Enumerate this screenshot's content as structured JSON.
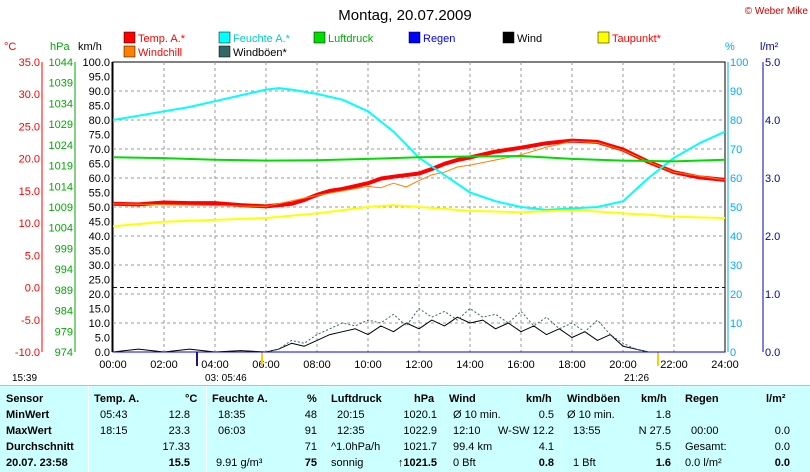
{
  "chart_data": {
    "type": "line",
    "title": "Montag, 20.07.2009",
    "copyright": "© Weber Mike",
    "x_ticks": [
      "00:00",
      "02:00",
      "04:00",
      "06:00",
      "08:00",
      "10:00",
      "12:00",
      "14:00",
      "16:00",
      "18:00",
      "20:00",
      "22:00",
      "24:00"
    ],
    "xlim": [
      0,
      24
    ],
    "axes": {
      "celsius": {
        "label": "°C",
        "ticks": [
          "35.0",
          "30.0",
          "25.0",
          "20.0",
          "15.0",
          "10.0",
          "5.0",
          "0.0",
          "-5.0",
          "-10.0"
        ],
        "range": [
          -10,
          35
        ],
        "color": "#ff0000"
      },
      "hpa": {
        "label": "hPa",
        "ticks": [
          "1044",
          "1039",
          "1034",
          "1029",
          "1024",
          "1019",
          "1014",
          "1009",
          "1004",
          "999",
          "994",
          "989",
          "984",
          "979",
          "974"
        ],
        "range": [
          974,
          1044
        ],
        "color": "#00aa00"
      },
      "kmh": {
        "label": "km/h",
        "ticks": [
          "100.0",
          "95.0",
          "90.0",
          "85.0",
          "80.0",
          "75.0",
          "70.0",
          "65.0",
          "60.0",
          "55.0",
          "50.0",
          "45.0",
          "40.0",
          "35.0",
          "30.0",
          "25.0",
          "20.0",
          "15.0",
          "10.0",
          "5.0",
          "0.0"
        ],
        "range": [
          0,
          100
        ],
        "color": "#000000"
      },
      "percent": {
        "label": "%",
        "ticks": [
          "100",
          "90",
          "80",
          "70",
          "60",
          "50",
          "40",
          "30",
          "20",
          "10",
          "0"
        ],
        "range": [
          0,
          100
        ],
        "color": "#00aaff"
      },
      "lm2": {
        "label": "l/m²",
        "ticks": [
          "5.0",
          "4.0",
          "3.0",
          "2.0",
          "1.0",
          "0.0"
        ],
        "range": [
          0,
          5
        ],
        "color": "#0000aa"
      }
    },
    "legend": [
      {
        "name": "Temp. A.*",
        "color": "#ff0000",
        "text_color": "#ff0000"
      },
      {
        "name": "Feuchte A.*",
        "color": "#00ffff",
        "text_color": "#00cccc"
      },
      {
        "name": "Luftdruck",
        "color": "#00dd00",
        "text_color": "#00aa00"
      },
      {
        "name": "Regen",
        "color": "#0000ff",
        "text_color": "#0000ff"
      },
      {
        "name": "Wind",
        "color": "#000000",
        "text_color": "#000000"
      },
      {
        "name": "Taupunkt*",
        "color": "#ffff00",
        "text_color": "#ff0000"
      },
      {
        "name": "Windchill",
        "color": "#ff8000",
        "text_color": "#ff0000"
      },
      {
        "name": "Windböen*",
        "color": "#336666",
        "text_color": "#000000"
      }
    ],
    "series": [
      {
        "name": "Temp. A.*",
        "axis": "celsius",
        "color": "#ff0000",
        "width": 4,
        "x": [
          0,
          1,
          2,
          3,
          4,
          5,
          6,
          7,
          7.5,
          8,
          8.5,
          9,
          10,
          10.5,
          11,
          12,
          12.5,
          13,
          13.5,
          14,
          15,
          16,
          17,
          18,
          19,
          20,
          21,
          22,
          23,
          24
        ],
        "y": [
          13.0,
          12.9,
          13.2,
          13.1,
          13.1,
          12.8,
          12.6,
          13.0,
          13.6,
          14.4,
          15.0,
          15.3,
          16.2,
          16.9,
          17.2,
          17.7,
          18.4,
          19.2,
          19.8,
          20.2,
          21.1,
          21.7,
          22.4,
          22.8,
          22.6,
          21.4,
          19.5,
          17.9,
          17.1,
          16.7
        ]
      },
      {
        "name": "Windchill",
        "axis": "celsius",
        "color": "#ff8000",
        "width": 1,
        "x": [
          0,
          6,
          8,
          10,
          10.5,
          11,
          11.5,
          12,
          12.5,
          13,
          13.5,
          14,
          15,
          16,
          17,
          18,
          19,
          20,
          21,
          22,
          24
        ],
        "y": [
          13.0,
          12.6,
          14.3,
          15.7,
          15.5,
          16.2,
          15.6,
          16.6,
          17.5,
          17.9,
          18.7,
          19.0,
          19.8,
          20.6,
          21.8,
          22.7,
          22.5,
          21.3,
          19.5,
          17.9,
          16.7
        ]
      },
      {
        "name": "Feuchte A.*",
        "axis": "percent",
        "color": "#00ffff",
        "width": 2,
        "x": [
          0,
          1,
          2,
          3,
          4,
          5,
          6,
          6.5,
          7,
          8,
          9,
          10,
          11,
          12,
          13,
          14,
          15,
          16,
          17,
          18,
          19,
          20,
          20.5,
          21,
          22,
          23,
          24
        ],
        "y": [
          80,
          81.5,
          83,
          84.5,
          86.5,
          88.5,
          90.5,
          91,
          90.5,
          89,
          87,
          83,
          76,
          67,
          61,
          55,
          52,
          50,
          49,
          49.5,
          50,
          52,
          56,
          60,
          67,
          72,
          76
        ]
      },
      {
        "name": "Luftdruck",
        "axis": "hpa",
        "color": "#00dd00",
        "width": 2,
        "x": [
          0,
          2,
          4,
          6,
          8,
          10,
          12,
          14,
          16,
          18,
          20,
          22,
          24
        ],
        "y": [
          1021.0,
          1020.8,
          1020.4,
          1020.2,
          1020.3,
          1020.6,
          1021.0,
          1021.2,
          1021.3,
          1020.6,
          1020.2,
          1020.0,
          1020.4
        ]
      },
      {
        "name": "Taupunkt*",
        "axis": "celsius",
        "color": "#ffff00",
        "width": 2,
        "x": [
          0,
          2,
          4,
          6,
          8,
          10,
          11,
          12,
          14,
          16,
          18,
          19,
          20,
          21,
          22,
          24
        ],
        "y": [
          9.5,
          10.2,
          10.5,
          10.8,
          11.5,
          12.5,
          12.8,
          12.5,
          11.9,
          11.7,
          12.0,
          11.8,
          11.5,
          11.3,
          11.0,
          10.8
        ]
      },
      {
        "name": "Wind",
        "axis": "kmh",
        "color": "#000000",
        "width": 1,
        "x": [
          0,
          1,
          2,
          3,
          4,
          5,
          6,
          6.5,
          7,
          7.5,
          8,
          8.5,
          9,
          9.5,
          10,
          10.5,
          11,
          11.5,
          12,
          12.5,
          13,
          13.5,
          14,
          14.5,
          15,
          15.5,
          16,
          16.5,
          17,
          17.5,
          18,
          18.5,
          19,
          19.5,
          20,
          20.5,
          21,
          22,
          23,
          24
        ],
        "y": [
          0,
          1,
          0,
          1,
          0,
          0.5,
          0,
          1,
          3,
          2,
          4,
          6,
          7,
          8,
          6,
          9,
          7,
          10,
          8,
          11,
          9,
          12,
          10,
          11,
          8,
          10,
          7,
          9,
          6,
          8,
          5,
          7,
          4,
          6,
          2,
          1,
          0,
          0,
          0,
          0
        ]
      },
      {
        "name": "Windböen*",
        "axis": "kmh",
        "color": "#336666",
        "width": 1,
        "dashed": true,
        "x": [
          0,
          2,
          4,
          6,
          6.5,
          7,
          7.5,
          8,
          8.5,
          9,
          9.5,
          10,
          10.5,
          11,
          11.5,
          12,
          12.5,
          13,
          13.5,
          14,
          14.5,
          15,
          15.5,
          16,
          16.5,
          17,
          17.5,
          18,
          18.5,
          19,
          19.5,
          20,
          20.5,
          21,
          22,
          24
        ],
        "y": [
          0,
          0,
          0,
          0,
          1,
          4,
          3,
          6,
          8,
          10,
          9,
          11,
          10,
          13,
          9,
          15,
          12,
          14,
          11,
          15,
          12,
          13,
          10,
          14,
          9,
          12,
          8,
          10,
          7,
          11,
          6,
          3,
          1,
          0,
          0,
          0
        ]
      },
      {
        "name": "Regen",
        "axis": "lm2",
        "color": "#0000ff",
        "width": 1,
        "x": [
          0,
          24
        ],
        "y": [
          0,
          0
        ]
      }
    ],
    "bottom_labels": {
      "left": "15:39",
      "mid": "03: 05:46",
      "right": "21:26"
    }
  },
  "table": {
    "headers": [
      "Sensor",
      "Temp. A.",
      "°C",
      "Feuchte A.",
      "%",
      "Luftdruck",
      "hPa",
      "Wind",
      "km/h",
      "Windböen",
      "km/h",
      "Regen",
      "l/m²"
    ],
    "rows": [
      {
        "label": "MinWert",
        "temp_time": "05:43",
        "temp": "12.8",
        "hum_time": "18:35",
        "hum": "48",
        "press_time": "20:15",
        "press": "1020.1",
        "wind_a": "Ø 10 min.",
        "wind": "0.5",
        "gust_a": "Ø 10 min.",
        "gust": "1.8",
        "rain_a": "",
        "rain": ""
      },
      {
        "label": "MaxWert",
        "temp_time": "18:15",
        "temp": "23.3",
        "hum_time": "06:03",
        "hum": "91",
        "press_time": "12:35",
        "press": "1022.9",
        "wind_a": "12:10",
        "wind_b": "W-SW 12.2",
        "gust_a": "13:55",
        "gust_b": "N 27.5",
        "rain_a": "00:00",
        "rain": "0.0"
      },
      {
        "label": "Durchschnitt",
        "temp": "17.33",
        "hum": "71",
        "press_time": "^1.0hPa/h",
        "press": "1021.7",
        "wind_a": "99.4 km",
        "wind": "4.1",
        "gust": "5.5",
        "rain_a": "Gesamt:",
        "rain": "0.0"
      },
      {
        "label": "20.07. 23:58",
        "temp": "15.5",
        "hum_time": "9.91 g/m³",
        "hum": "75",
        "press_time": "sonnig",
        "press": "↑1021.5",
        "wind_a": "0 Bft",
        "wind": "0.8",
        "gust_a": "1 Bft",
        "gust": "1.6",
        "rain_a": "0.0 l/m²",
        "rain": "0.0"
      }
    ]
  }
}
